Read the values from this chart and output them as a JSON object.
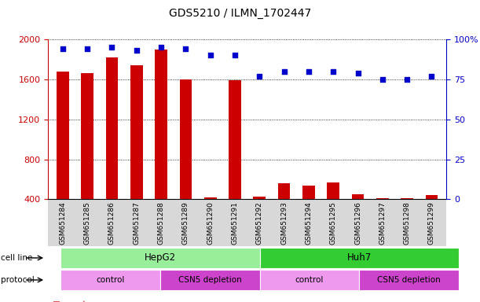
{
  "title": "GDS5210 / ILMN_1702447",
  "samples": [
    "GSM651284",
    "GSM651285",
    "GSM651286",
    "GSM651287",
    "GSM651288",
    "GSM651289",
    "GSM651290",
    "GSM651291",
    "GSM651292",
    "GSM651293",
    "GSM651294",
    "GSM651295",
    "GSM651296",
    "GSM651297",
    "GSM651298",
    "GSM651299"
  ],
  "counts": [
    1680,
    1660,
    1820,
    1740,
    1900,
    1600,
    420,
    1590,
    430,
    560,
    540,
    570,
    450,
    415,
    415,
    440
  ],
  "percentiles": [
    94,
    94,
    95,
    93,
    95,
    94,
    90,
    90,
    77,
    80,
    80,
    80,
    79,
    75,
    75,
    77
  ],
  "ylim_left": [
    400,
    2000
  ],
  "ylim_right": [
    0,
    100
  ],
  "yticks_left": [
    400,
    800,
    1200,
    1600,
    2000
  ],
  "yticks_right": [
    0,
    25,
    50,
    75,
    100
  ],
  "bar_color": "#cc0000",
  "dot_color": "#0000cc",
  "grid_color": "#000000",
  "cell_lines": [
    {
      "label": "HepG2",
      "start": 0,
      "end": 8,
      "color": "#99ee99"
    },
    {
      "label": "Huh7",
      "start": 8,
      "end": 16,
      "color": "#33cc33"
    }
  ],
  "protocols": [
    {
      "label": "control",
      "start": 0,
      "end": 4,
      "color": "#ee99ee"
    },
    {
      "label": "CSN5 depletion",
      "start": 4,
      "end": 8,
      "color": "#cc44cc"
    },
    {
      "label": "control",
      "start": 8,
      "end": 12,
      "color": "#ee99ee"
    },
    {
      "label": "CSN5 depletion",
      "start": 12,
      "end": 16,
      "color": "#cc44cc"
    }
  ],
  "tick_color_left": "#cc0000",
  "tick_color_right": "#0000cc",
  "bg_color": "#ffffff",
  "ticklabel_bg": "#d8d8d8"
}
